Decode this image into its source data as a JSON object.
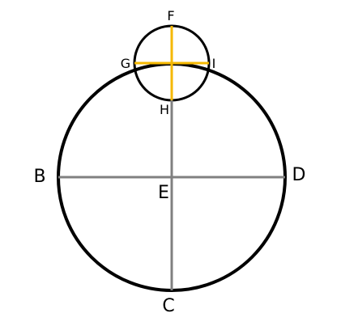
{
  "colors": {
    "background": "#ffffff",
    "circle_stroke": "#000000",
    "gray_segment": "#808080",
    "yellow_segment": "#f5b800",
    "label": "#000000"
  },
  "labels": {
    "F": "F",
    "G": "G",
    "I": "I",
    "H": "H",
    "B": "B",
    "D": "D",
    "E": "E",
    "C": "C"
  }
}
